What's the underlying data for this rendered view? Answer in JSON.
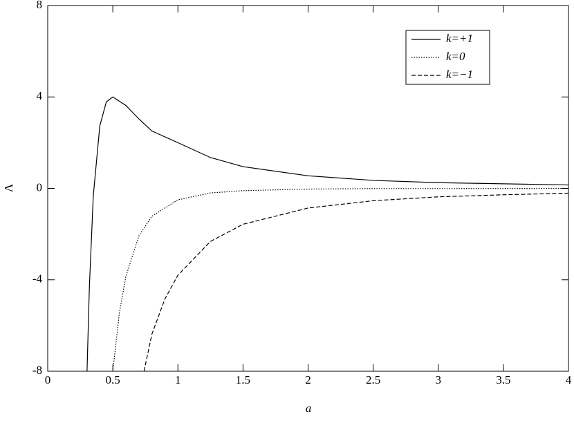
{
  "chart_data": {
    "type": "line",
    "x_label": "a",
    "y_label": "Λ",
    "xlim": [
      0,
      4
    ],
    "ylim": [
      -8,
      8
    ],
    "xticks": [
      0,
      0.5,
      1,
      1.5,
      2,
      2.5,
      3,
      3.5,
      4
    ],
    "yticks": [
      -8,
      -4,
      0,
      4,
      8
    ],
    "legend": "upper right",
    "series": [
      {
        "name": "k=+1",
        "color": "#000000",
        "dash": "solid",
        "x": [
          0.302,
          0.32,
          0.35,
          0.4,
          0.45,
          0.5,
          0.6,
          0.7,
          0.8,
          1,
          1.25,
          1.5,
          2,
          2.5,
          3,
          3.5,
          4
        ],
        "values": [
          -8,
          -4.31,
          -0.33,
          2.73,
          3.78,
          4,
          3.63,
          3.04,
          2.51,
          2.0,
          1.35,
          0.95,
          0.55,
          0.35,
          0.25,
          0.2,
          0.15
        ]
      },
      {
        "name": "k=0",
        "color": "#000000",
        "dash": "dotted",
        "x": [
          0.5,
          0.55,
          0.6,
          0.7,
          0.8,
          1,
          1.25,
          1.5,
          2,
          2.5,
          3,
          4
        ],
        "values": [
          -8,
          -5.46,
          -3.86,
          -2.08,
          -1.22,
          -0.5,
          -0.2,
          -0.1,
          -0.03,
          -0.01,
          -0.01,
          0
        ]
      },
      {
        "name": "k=−1",
        "color": "#000000",
        "dash": "dashed",
        "x": [
          0.74,
          0.8,
          0.9,
          1,
          1.25,
          1.5,
          2,
          2.5,
          3,
          3.5,
          4
        ],
        "values": [
          -8,
          -6.38,
          -4.84,
          -3.8,
          -2.32,
          -1.57,
          -0.86,
          -0.54,
          -0.37,
          -0.28,
          -0.21
        ]
      }
    ]
  }
}
